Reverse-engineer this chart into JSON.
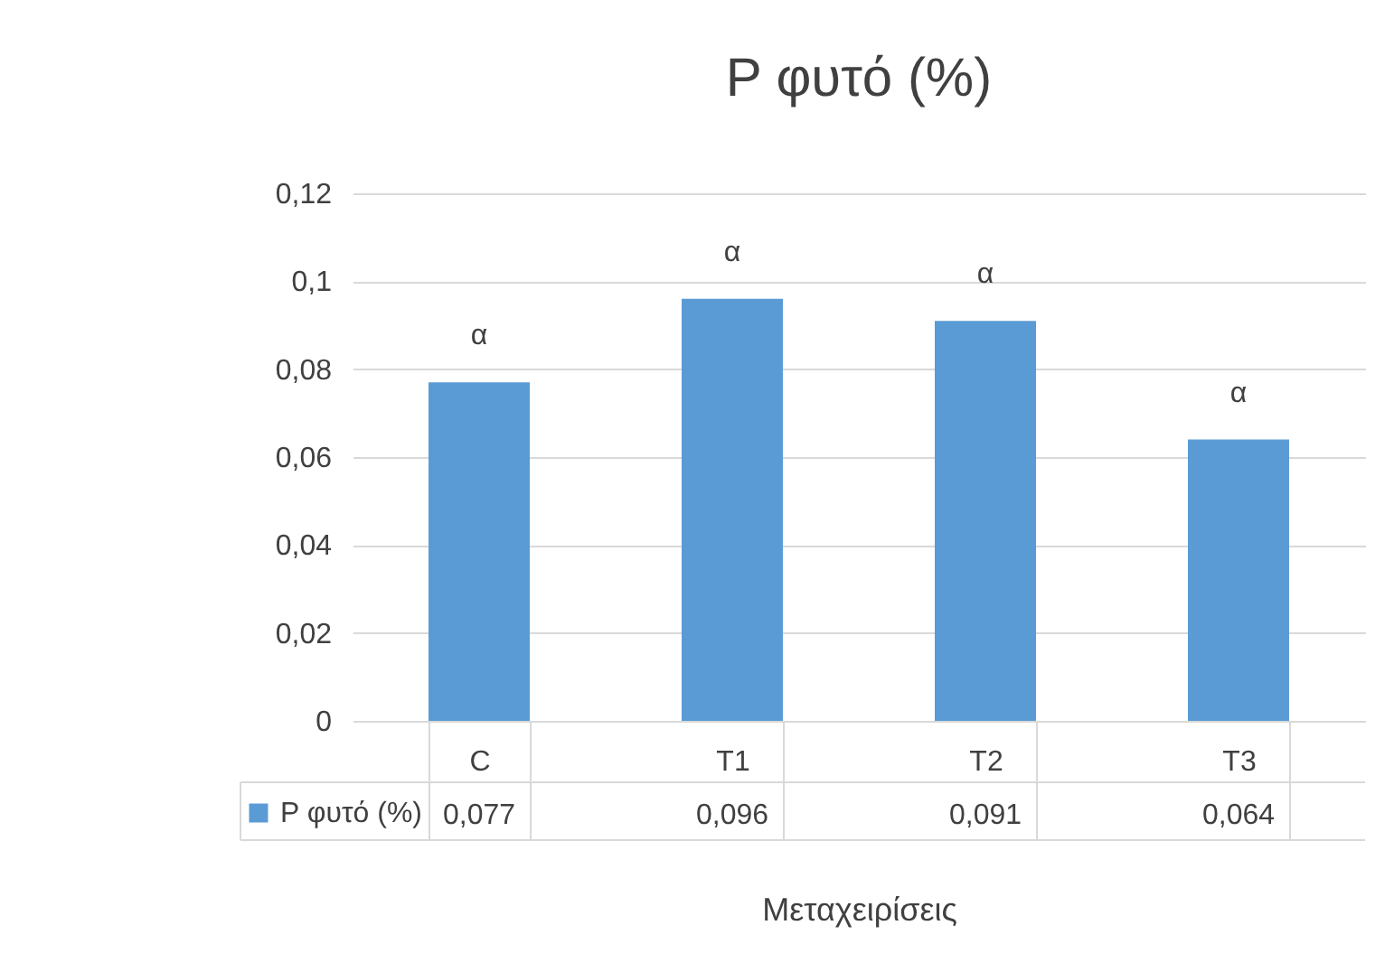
{
  "chart_data": {
    "type": "bar",
    "title": "P φυτό (%)",
    "xlabel": "Μεταχειρίσεις",
    "categories": [
      "C",
      "T1",
      "T2",
      "T3"
    ],
    "series": [
      {
        "name": "P φυτό (%)",
        "color": "#5b9bd5",
        "values": [
          0.077,
          0.096,
          0.091,
          0.064
        ],
        "value_labels": [
          "0,077",
          "0,096",
          "0,091",
          "0,064"
        ]
      }
    ],
    "ylim": [
      0,
      0.12
    ],
    "yticks": [
      {
        "value": 0,
        "label": "0"
      },
      {
        "value": 0.02,
        "label": "0,02"
      },
      {
        "value": 0.04,
        "label": "0,04"
      },
      {
        "value": 0.06,
        "label": "0,06"
      },
      {
        "value": 0.08,
        "label": "0,08"
      },
      {
        "value": 0.1,
        "label": "0,1"
      },
      {
        "value": 0.12,
        "label": "0,12"
      }
    ],
    "grid": "y",
    "legend": "bottom left",
    "annotations": [
      {
        "text": "α",
        "x": "C",
        "y": 0.077
      },
      {
        "text": "α",
        "x": "T1",
        "y": 0.096
      },
      {
        "text": "α",
        "x": "T2",
        "y": 0.091
      },
      {
        "text": "α",
        "x": "T3",
        "y": 0.064
      }
    ]
  }
}
